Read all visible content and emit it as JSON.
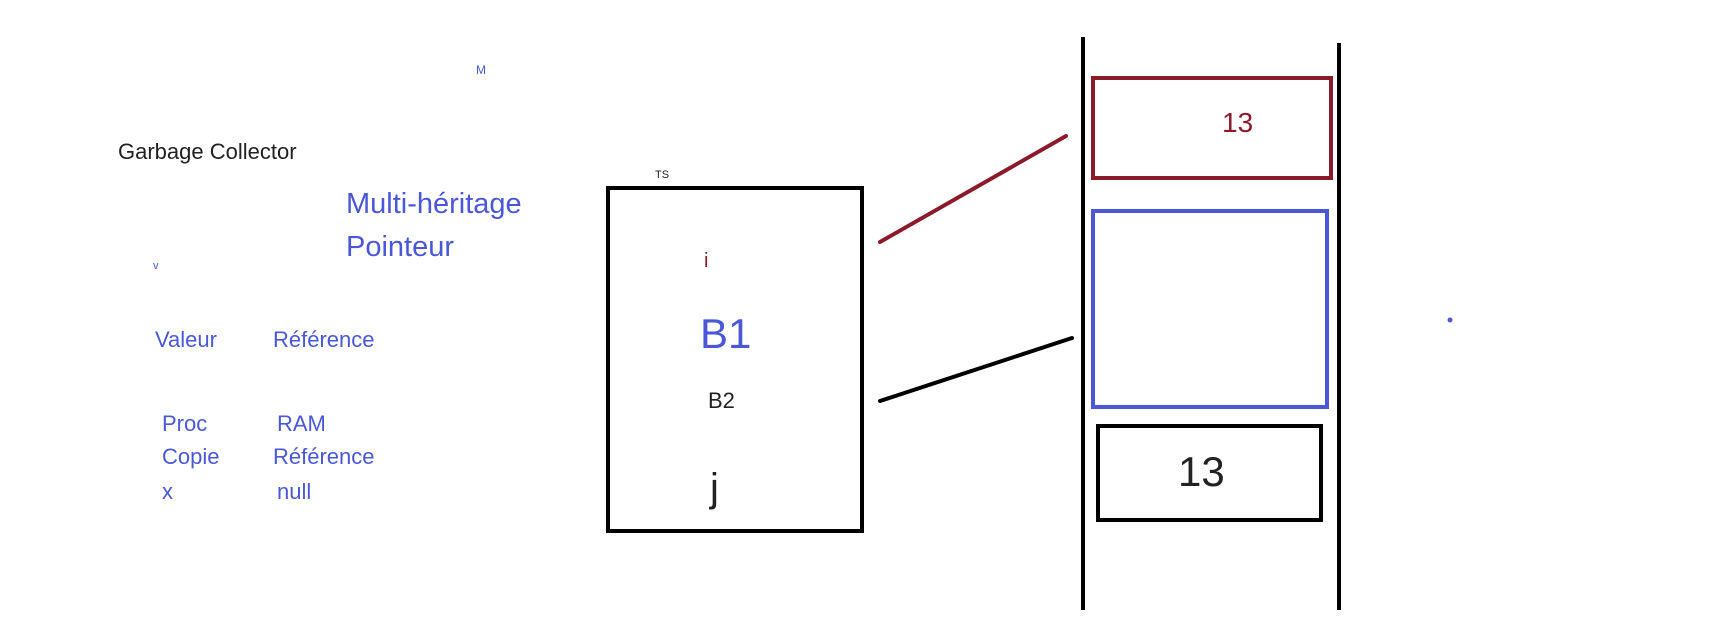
{
  "labels": {
    "m": "M",
    "garbage_collector": "Garbage Collector",
    "multi_heritage": "Multi-héritage",
    "pointeur": "Pointeur",
    "v": "v",
    "valeur": "Valeur",
    "reference": "Référence",
    "proc": "Proc",
    "ram": "RAM",
    "copie": "Copie",
    "reference_2": "Référence",
    "x": "x",
    "null": "null"
  },
  "stack_box": {
    "label": "TS",
    "items": {
      "i": "i",
      "b1": "B1",
      "b2": "B2",
      "j": "j"
    }
  },
  "memory_column": {
    "cell_top_value": "13",
    "cell_bottom_value": "13"
  },
  "colors": {
    "blue": "#4a57d6",
    "dark_red": "#8b1a2b",
    "black": "#000000"
  }
}
